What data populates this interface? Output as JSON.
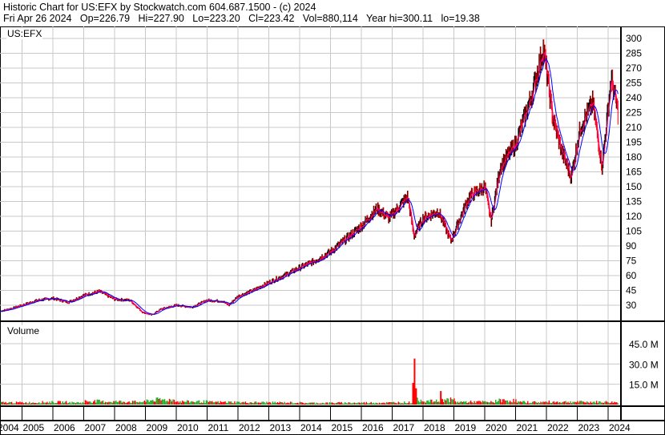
{
  "header": {
    "title": "Historic Chart for US:EFX by Stockwatch.com 604.687.1500 - (c) 2024",
    "quote": "Fri Apr 26 2024   Op=226.79   Hi=227.90   Lo=223.20   Cl=223.42   Vol=880,114   Year hi=300.11   lo=19.38"
  },
  "chart_data": [
    {
      "type": "line",
      "title": "US:EFX",
      "ylim": [
        15,
        307
      ],
      "yticks": [
        300,
        285,
        270,
        255,
        240,
        225,
        210,
        195,
        180,
        165,
        150,
        135,
        120,
        105,
        90,
        75,
        60,
        45,
        30
      ],
      "xticks": [
        "2004",
        "2005",
        "2006",
        "2007",
        "2008",
        "2009",
        "2010",
        "2011",
        "2012",
        "2013",
        "2014",
        "2015",
        "2016",
        "2017",
        "2018",
        "2019",
        "2020",
        "2021",
        "2022",
        "2023",
        "2024"
      ],
      "grid": true,
      "colors": {
        "price": "#000000",
        "fast_ma": "#ff0080",
        "slow_ma": "#0000ff",
        "down": "#ff0000"
      },
      "x": [
        2004.3,
        2004.7,
        2005.0,
        2005.5,
        2006.0,
        2006.5,
        2007.0,
        2007.5,
        2008.0,
        2008.5,
        2008.9,
        2009.2,
        2009.5,
        2010.0,
        2010.5,
        2011.0,
        2011.5,
        2011.7,
        2012.0,
        2012.5,
        2013.0,
        2013.5,
        2014.0,
        2014.5,
        2015.0,
        2015.5,
        2016.0,
        2016.5,
        2016.9,
        2017.5,
        2017.7,
        2018.0,
        2018.5,
        2018.9,
        2019.2,
        2019.5,
        2020.0,
        2020.2,
        2020.5,
        2021.0,
        2021.5,
        2021.9,
        2022.2,
        2022.5,
        2022.8,
        2023.1,
        2023.5,
        2023.8,
        2024.1,
        2024.33
      ],
      "close": [
        24,
        27,
        30,
        35,
        37,
        33,
        40,
        44,
        36,
        35,
        23,
        20,
        26,
        30,
        28,
        35,
        34,
        30,
        39,
        45,
        53,
        60,
        68,
        75,
        84,
        97,
        110,
        128,
        118,
        140,
        100,
        118,
        125,
        95,
        118,
        140,
        150,
        115,
        170,
        193,
        240,
        290,
        220,
        185,
        160,
        210,
        235,
        170,
        260,
        223
      ]
    },
    {
      "type": "bar",
      "title": "Volume",
      "ylim": [
        0,
        55
      ],
      "yticks": [
        "45.0 M",
        "30.0 M",
        "15.0 M"
      ],
      "ytick_values": [
        45,
        30,
        15
      ],
      "unit": "M",
      "colors": {
        "up": "#22aa22",
        "down": "#ff0000"
      },
      "x": [
        2004.5,
        2005.5,
        2006.5,
        2007.0,
        2007.5,
        2008.5,
        2009.0,
        2009.2,
        2010.0,
        2011.0,
        2012.0,
        2013.0,
        2014.0,
        2015.0,
        2016.0,
        2017.0,
        2017.65,
        2017.7,
        2017.75,
        2018.0,
        2018.55,
        2018.6,
        2019.0,
        2020.0,
        2020.3,
        2021.0,
        2022.0,
        2023.0,
        2024.0,
        2024.3
      ],
      "values": [
        1.5,
        1.8,
        1.5,
        2.5,
        2.2,
        2.0,
        3.0,
        3.5,
        2.2,
        1.8,
        1.6,
        1.5,
        1.2,
        1.3,
        1.4,
        1.6,
        16,
        34,
        12,
        2.5,
        10,
        4,
        2.0,
        1.8,
        3.0,
        1.8,
        2.0,
        1.9,
        1.7,
        3.5
      ]
    }
  ]
}
